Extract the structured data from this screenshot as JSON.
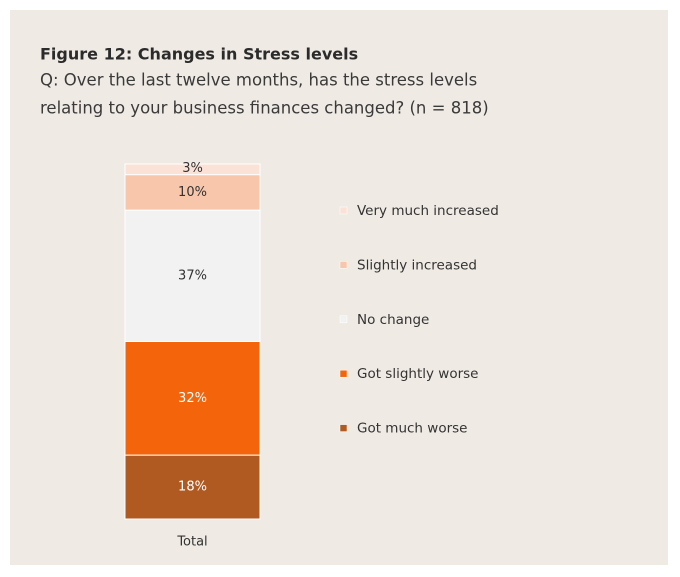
{
  "chart_data": {
    "type": "stacked_bar",
    "title": "Figure 12: Changes in Stress levels",
    "subtitle": [
      "Q: Over the last twelve months, has the stress levels",
      "relating to your business finances changed? (n = 818)"
    ],
    "categories": [
      "Total"
    ],
    "ylim": [
      0,
      100
    ],
    "series": [
      {
        "name": "Very much increased",
        "color": "#fbe2d6",
        "values": [
          3
        ],
        "value_labels": [
          "3%"
        ]
      },
      {
        "name": "Slightly increased",
        "color": "#f8c6aa",
        "values": [
          10
        ],
        "value_labels": [
          "10%"
        ]
      },
      {
        "name": "No change",
        "color": "#f2f2f2",
        "values": [
          37
        ],
        "value_labels": [
          "37%"
        ]
      },
      {
        "name": "Got slightly worse",
        "color": "#f4640a",
        "values": [
          32
        ],
        "value_labels": [
          "32%"
        ]
      },
      {
        "name": "Got much worse",
        "color": "#b05a22",
        "values": [
          18
        ],
        "value_labels": [
          "18%"
        ]
      }
    ]
  }
}
